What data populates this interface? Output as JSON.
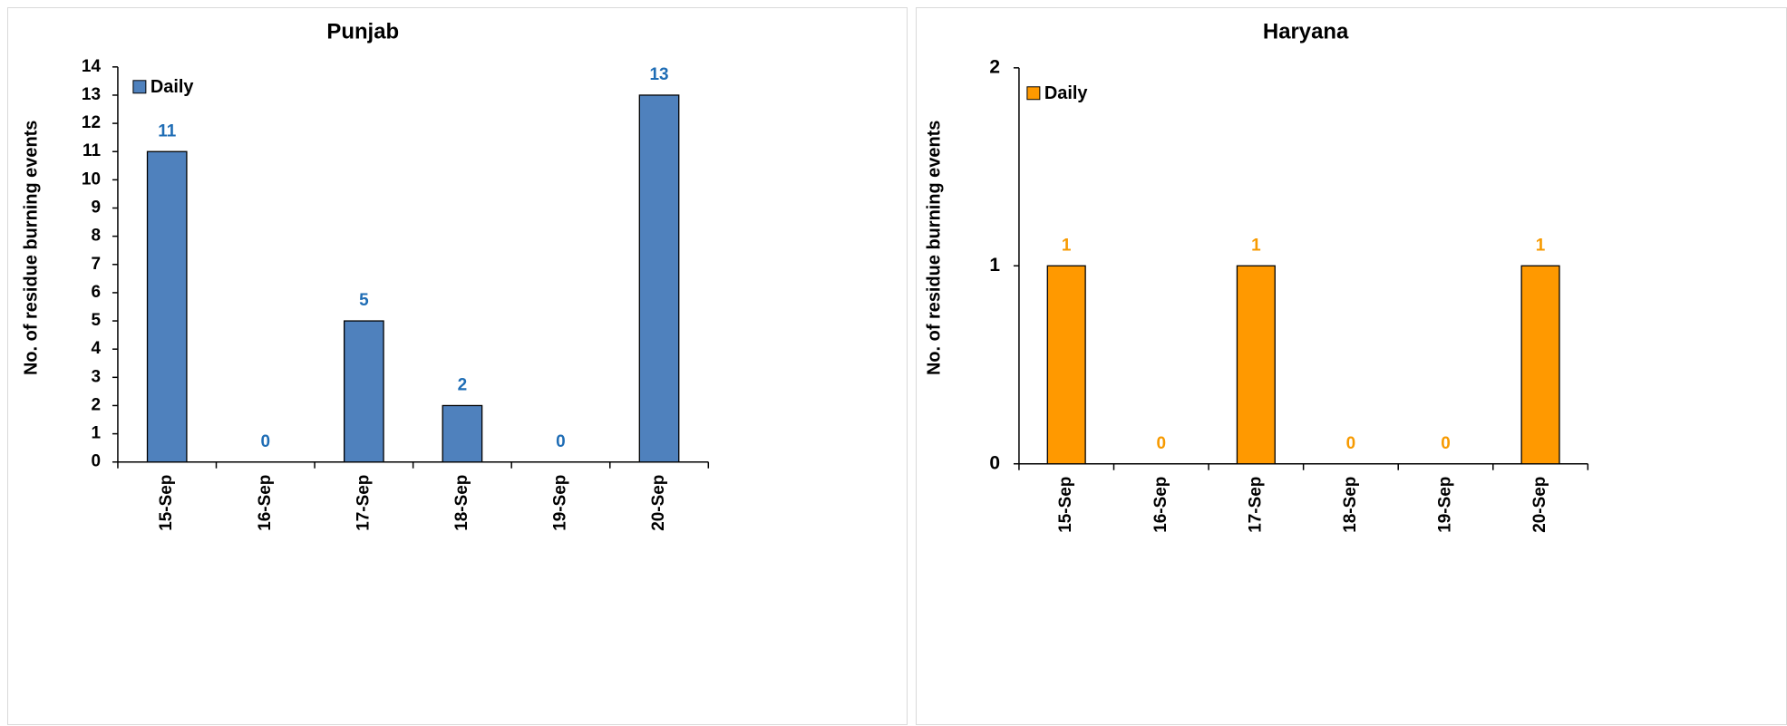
{
  "chart_data": [
    {
      "type": "bar",
      "title": "Punjab",
      "ylabel": "No. of residue burning events",
      "xlabel": "",
      "categories": [
        "15-Sep",
        "16-Sep",
        "17-Sep",
        "18-Sep",
        "19-Sep",
        "20-Sep"
      ],
      "series": [
        {
          "name": "Daily",
          "values": [
            11,
            0,
            5,
            2,
            0,
            13
          ]
        }
      ],
      "data_labels": [
        "11",
        "0",
        "5",
        "2",
        "0",
        "13"
      ],
      "ylim": [
        0,
        14
      ],
      "yticks": [
        "0",
        "1",
        "2",
        "3",
        "4",
        "5",
        "6",
        "7",
        "8",
        "9",
        "10",
        "11",
        "12",
        "13",
        "14"
      ],
      "bar_color": "#4f81bd",
      "label_color": "#1f6db5",
      "legend_position": "top-left",
      "grid": false
    },
    {
      "type": "bar",
      "title": "Haryana",
      "ylabel": "No. of residue burning events",
      "xlabel": "",
      "categories": [
        "15-Sep",
        "16-Sep",
        "17-Sep",
        "18-Sep",
        "19-Sep",
        "20-Sep"
      ],
      "series": [
        {
          "name": "Daily",
          "values": [
            1,
            0,
            1,
            0,
            0,
            1
          ]
        }
      ],
      "data_labels": [
        "1",
        "0",
        "1",
        "0",
        "0",
        "1"
      ],
      "ylim": [
        0,
        2
      ],
      "yticks": [
        "0",
        "1",
        "2"
      ],
      "bar_color": "#ff9900",
      "label_color": "#f79a00",
      "legend_position": "top-left",
      "grid": false
    }
  ]
}
